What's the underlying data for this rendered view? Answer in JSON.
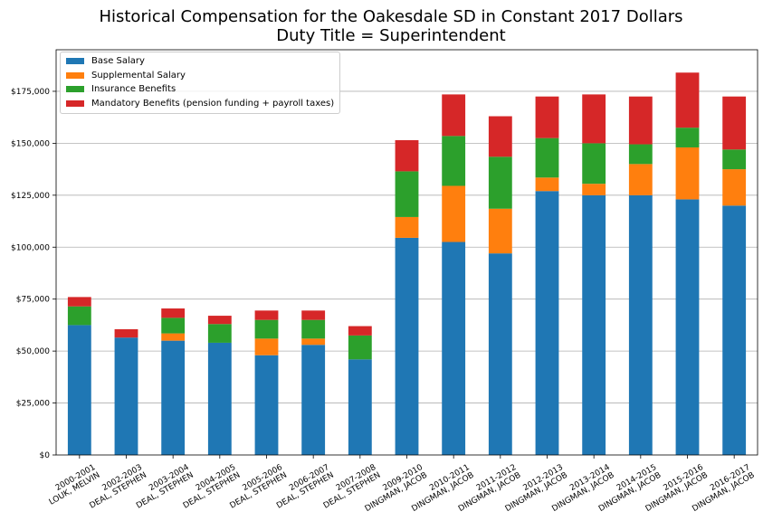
{
  "title_line1": "Historical Compensation for the Oakesdale SD in Constant 2017 Dollars",
  "title_line2": "Duty Title = Superintendent",
  "chart_data": {
    "type": "bar",
    "stacked": true,
    "title": "Historical Compensation for the Oakesdale SD in Constant 2017 Dollars\nDuty Title = Superintendent",
    "categories": [
      [
        "2000-2001",
        "LOUK, MELVIN"
      ],
      [
        "2002-2003",
        "DEAL, STEPHEN"
      ],
      [
        "2003-2004",
        "DEAL, STEPHEN"
      ],
      [
        "2004-2005",
        "DEAL, STEPHEN"
      ],
      [
        "2005-2006",
        "DEAL, STEPHEN"
      ],
      [
        "2006-2007",
        "DEAL, STEPHEN"
      ],
      [
        "2007-2008",
        "DEAL, STEPHEN"
      ],
      [
        "2009-2010",
        "DINGMAN, JACOB"
      ],
      [
        "2010-2011",
        "DINGMAN, JACOB"
      ],
      [
        "2011-2012",
        "DINGMAN, JACOB"
      ],
      [
        "2012-2013",
        "DINGMAN, JACOB"
      ],
      [
        "2013-2014",
        "DINGMAN, JACOB"
      ],
      [
        "2014-2015",
        "DINGMAN, JACOB"
      ],
      [
        "2015-2016",
        "DINGMAN, JACOB"
      ],
      [
        "2016-2017",
        "DINGMAN, JACOB"
      ]
    ],
    "series": [
      {
        "name": "Base Salary",
        "color": "#1f77b4",
        "values": [
          62500,
          56500,
          55000,
          54000,
          48000,
          53000,
          46000,
          104500,
          102500,
          97000,
          127000,
          125000,
          125000,
          123000,
          120000
        ]
      },
      {
        "name": "Supplemental Salary",
        "color": "#ff7f0e",
        "values": [
          0,
          0,
          3500,
          0,
          8000,
          3000,
          0,
          10000,
          27000,
          21500,
          6500,
          5500,
          15000,
          25000,
          17500
        ]
      },
      {
        "name": "Insurance Benefits",
        "color": "#2ca02c",
        "values": [
          9000,
          0,
          7500,
          9000,
          9000,
          9000,
          11500,
          22000,
          24000,
          25000,
          19000,
          19500,
          9500,
          9500,
          9500
        ]
      },
      {
        "name": "Mandatory Benefits (pension funding + payroll taxes)",
        "color": "#d62728",
        "values": [
          4500,
          4000,
          4500,
          4000,
          4500,
          4500,
          4500,
          15000,
          20000,
          19500,
          20000,
          23500,
          23000,
          26500,
          25500
        ]
      }
    ],
    "yticks": [
      "$0",
      "$25,000",
      "$50,000",
      "$75,000",
      "$100,000",
      "$125,000",
      "$150,000",
      "$175,000"
    ],
    "ylim": [
      0,
      195000
    ],
    "grid": "horizontal",
    "legend": "top-left"
  }
}
